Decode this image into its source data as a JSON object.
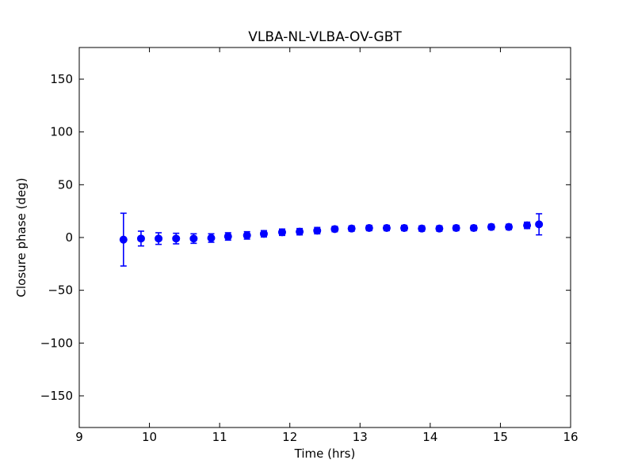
{
  "chart_data": {
    "type": "scatter",
    "title": "VLBA-NL-VLBA-OV-GBT",
    "xlabel": "Time (hrs)",
    "ylabel": "Closure phase (deg)",
    "xlim": [
      9,
      16
    ],
    "ylim": [
      -180,
      180
    ],
    "xticks": [
      9,
      10,
      11,
      12,
      13,
      14,
      15,
      16
    ],
    "yticks": [
      -150,
      -100,
      -50,
      0,
      50,
      100,
      150
    ],
    "grid": false,
    "legend": "none",
    "marker": "circle",
    "marker_color": "#0000ff",
    "errorbar_color": "#0000ff",
    "axis_color": "#000000",
    "background_color": "#ffffff",
    "series": [
      {
        "name": "closure-phase",
        "x": [
          9.63,
          9.88,
          10.13,
          10.38,
          10.63,
          10.88,
          11.12,
          11.39,
          11.63,
          11.89,
          12.14,
          12.39,
          12.64,
          12.88,
          13.13,
          13.38,
          13.63,
          13.88,
          14.13,
          14.37,
          14.62,
          14.87,
          15.12,
          15.38,
          15.55
        ],
        "y": [
          -2,
          -1,
          -1,
          -1,
          -1,
          -0.5,
          1,
          2,
          3.5,
          5,
          5.5,
          6.5,
          8,
          8.5,
          9,
          9,
          9,
          8.5,
          8.5,
          9,
          9,
          10,
          10,
          11.5,
          12.5
        ],
        "yerr": [
          25,
          7,
          5.5,
          5,
          4.5,
          4,
          3.5,
          3.5,
          3,
          3,
          3,
          3,
          2.5,
          2.5,
          2.5,
          2.5,
          2.5,
          2.5,
          2.5,
          2.5,
          2.5,
          2.5,
          2.5,
          3,
          10
        ]
      }
    ]
  }
}
